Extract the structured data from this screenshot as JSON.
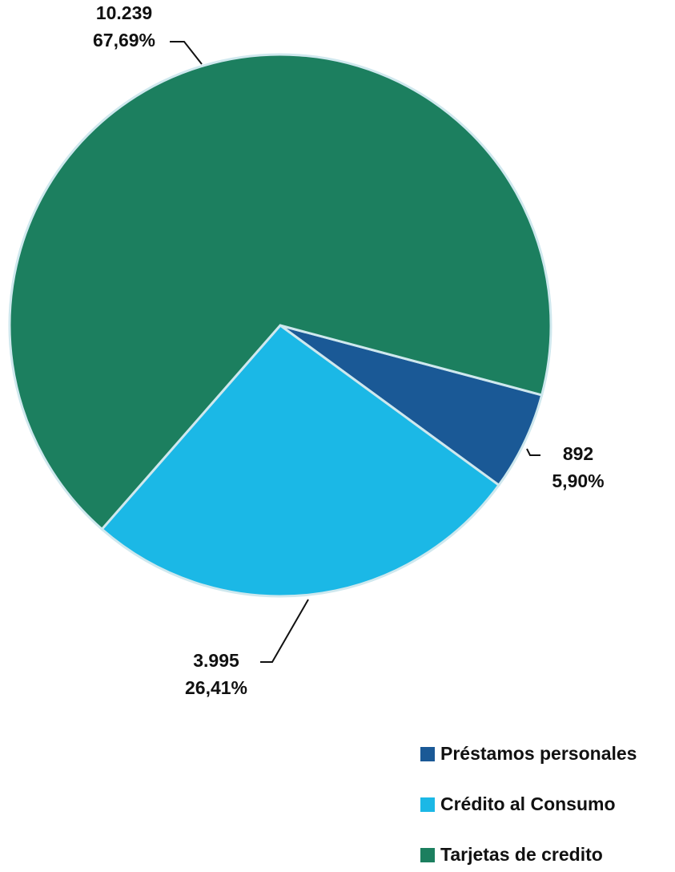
{
  "chart_data": {
    "type": "pie",
    "categories": [
      "Préstamos personales",
      "Crédito al Consumo",
      "Tarjetas de credito"
    ],
    "values": [
      892,
      3995,
      10239
    ],
    "value_labels": [
      "892",
      "3.995",
      "10.239"
    ],
    "percents": [
      5.9,
      26.41,
      67.69
    ],
    "percent_labels": [
      "5,90%",
      "26,41%",
      "67,69%"
    ],
    "colors": [
      "#1a5996",
      "#1bb8e6",
      "#1c7f5f"
    ],
    "legend": "bottom-right"
  }
}
